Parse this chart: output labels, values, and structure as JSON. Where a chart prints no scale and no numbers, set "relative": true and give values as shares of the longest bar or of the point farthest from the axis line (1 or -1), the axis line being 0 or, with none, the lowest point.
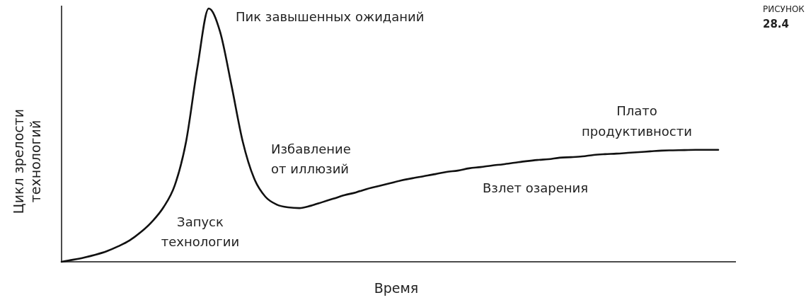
{
  "chart_data": {
    "type": "line",
    "relative": true,
    "xlabel": "Время",
    "ylabel": "Цикл зрелости\nтехнологий",
    "marker": "none",
    "line_style": "solid",
    "tick_labels": false,
    "categories": [
      null,
      null,
      null,
      null,
      null,
      null,
      null,
      null,
      null,
      null,
      null,
      null,
      null,
      null,
      null,
      null,
      null,
      null,
      null,
      null,
      null,
      null,
      null,
      null,
      null,
      null,
      null,
      null,
      null,
      null,
      null,
      null,
      null,
      null,
      null,
      null,
      null,
      null,
      null,
      null,
      null,
      null,
      null,
      null,
      null,
      null,
      null,
      null,
      null,
      null,
      null,
      null,
      null,
      null,
      null,
      null,
      null,
      null,
      null
    ],
    "series": [
      {
        "color": "#111111",
        "values": [
          0,
          0.008,
          0.017,
          0.028,
          0.042,
          0.061,
          0.084,
          0.117,
          0.159,
          0.215,
          0.302,
          0.475,
          0.768,
          1,
          0.908,
          0.698,
          0.475,
          0.33,
          0.257,
          0.226,
          0.215,
          0.212,
          0.221,
          0.235,
          0.249,
          0.263,
          0.274,
          0.288,
          0.299,
          0.31,
          0.321,
          0.33,
          0.338,
          0.346,
          0.355,
          0.36,
          0.369,
          0.374,
          0.38,
          0.385,
          0.391,
          0.397,
          0.402,
          0.405,
          0.411,
          0.413,
          0.416,
          0.422,
          0.425,
          0.427,
          0.43,
          0.433,
          0.436,
          0.439,
          0.44,
          0.441,
          0.442,
          0.442,
          0.442
        ]
      }
    ],
    "annotations": [
      "Пик завышенных ожиданий",
      "Избавление\nот иллюзий",
      "Запуск\nтехнологии",
      "Взлет озарения",
      "Плато\nпродуктивности",
      "РИСУНОК\n28.4"
    ]
  }
}
